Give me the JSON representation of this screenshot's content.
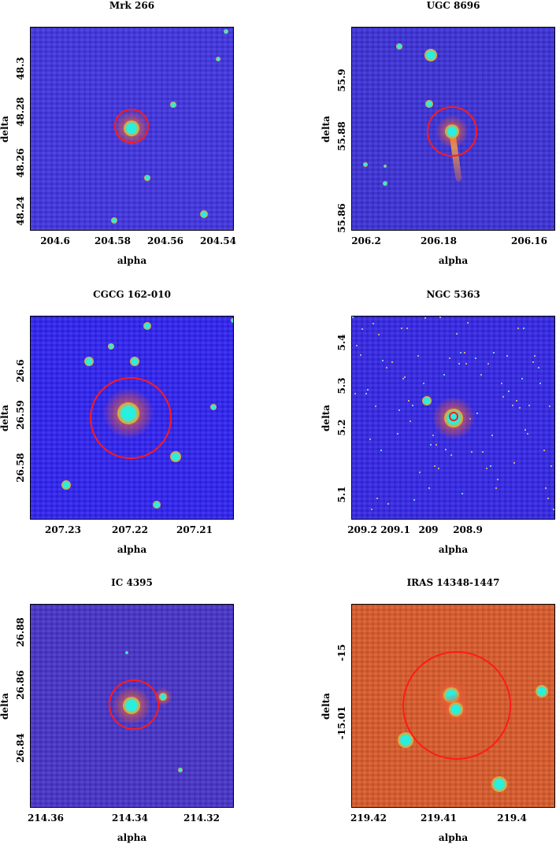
{
  "panels": [
    {
      "title": "Mrk 266",
      "xlabel": "alpha",
      "ylabel": "delta",
      "xticks": [
        "204.6",
        "204.58",
        "204.56",
        "204.54"
      ],
      "yticks": [
        "48.3",
        "48.28",
        "48.26",
        "48.24"
      ],
      "background": "#3f33df"
    },
    {
      "title": "UGC 8696",
      "xlabel": "alpha",
      "ylabel": "delta",
      "xticks": [
        "206.2",
        "206.18",
        "206.16"
      ],
      "yticks": [
        "55.9",
        "55.88",
        "55.86"
      ],
      "background": "#3b30d6"
    },
    {
      "title": "CGCG 162-010",
      "xlabel": "alpha",
      "ylabel": "delta",
      "xticks": [
        "207.23",
        "207.22",
        "207.21"
      ],
      "yticks": [
        "26.6",
        "26.59",
        "26.58"
      ],
      "background": "#2f22f0"
    },
    {
      "title": "NGC 5363",
      "xlabel": "alpha",
      "ylabel": "delta",
      "xticks": [
        "209.2",
        "209.1",
        "209",
        "208.9"
      ],
      "yticks": [
        "5.4",
        "5.3",
        "5.2",
        "5.1"
      ],
      "background": "#3326e5"
    },
    {
      "title": "IC 4395",
      "xlabel": "alpha",
      "ylabel": "delta",
      "xticks": [
        "214.36",
        "214.34",
        "214.32"
      ],
      "yticks": [
        "26.88",
        "26.86",
        "26.84"
      ],
      "background": "#4632c8"
    },
    {
      "title": "IRAS 14348-1447",
      "xlabel": "alpha",
      "ylabel": "delta",
      "xticks": [
        "219.42",
        "219.41",
        "219.4"
      ],
      "yticks": [
        "-15",
        "-15.01"
      ],
      "background": "#d85a2a"
    }
  ],
  "colors": {
    "circle": "#ff1a1a",
    "core": "#28f0e0",
    "halo": "#ff9a20"
  }
}
